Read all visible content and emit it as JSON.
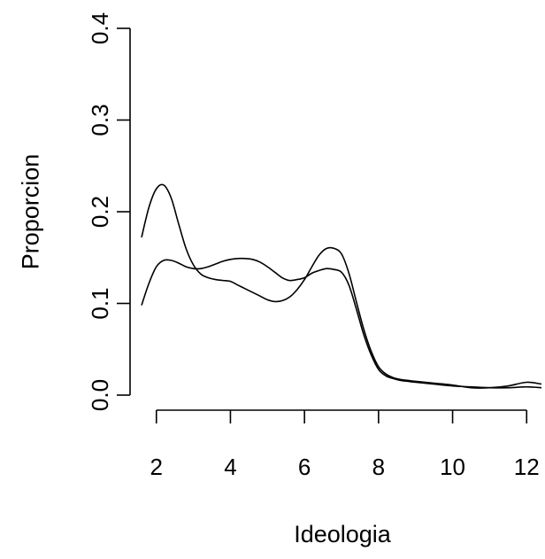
{
  "chart_data": {
    "type": "line",
    "title": "",
    "xlabel": "Ideologia",
    "ylabel": "Proporcion",
    "xlim": [
      1.6,
      12.4
    ],
    "ylim": [
      0.0,
      0.4
    ],
    "xticks": [
      2,
      4,
      6,
      8,
      10,
      12
    ],
    "xtick_labels": [
      "2",
      "4",
      "6",
      "8",
      "10",
      "12"
    ],
    "yticks": [
      0.0,
      0.1,
      0.2,
      0.3,
      0.4
    ],
    "ytick_labels": [
      "0.0",
      "0.1",
      "0.2",
      "0.3",
      "0.4"
    ],
    "grid": false,
    "legend": "none",
    "line_color": "#000000",
    "series": [
      {
        "x": [
          1.6,
          1.8,
          2.0,
          2.2,
          2.4,
          2.6,
          2.8,
          3.0,
          3.2,
          3.4,
          3.6,
          3.8,
          4.0,
          4.2,
          4.4,
          4.6,
          4.8,
          5.0,
          5.2,
          5.4,
          5.6,
          5.8,
          6.0,
          6.2,
          6.4,
          6.6,
          6.8,
          7.0,
          7.2,
          7.4,
          7.6,
          7.8,
          8.0,
          8.2,
          8.4,
          8.6,
          8.8,
          9.0,
          9.5,
          10.0,
          10.5,
          11.0,
          11.5,
          12.0,
          12.4
        ],
        "values": [
          0.172,
          0.205,
          0.225,
          0.229,
          0.215,
          0.187,
          0.16,
          0.142,
          0.132,
          0.128,
          0.126,
          0.125,
          0.124,
          0.12,
          0.116,
          0.112,
          0.108,
          0.104,
          0.102,
          0.103,
          0.107,
          0.115,
          0.126,
          0.14,
          0.153,
          0.16,
          0.16,
          0.154,
          0.133,
          0.102,
          0.072,
          0.048,
          0.031,
          0.023,
          0.019,
          0.017,
          0.016,
          0.015,
          0.013,
          0.011,
          0.008,
          0.008,
          0.01,
          0.014,
          0.012
        ]
      },
      {
        "x": [
          1.6,
          1.8,
          2.0,
          2.2,
          2.4,
          2.6,
          2.8,
          3.0,
          3.2,
          3.4,
          3.6,
          3.8,
          4.0,
          4.2,
          4.4,
          4.6,
          4.8,
          5.0,
          5.2,
          5.4,
          5.6,
          5.8,
          6.0,
          6.2,
          6.4,
          6.6,
          6.8,
          7.0,
          7.2,
          7.4,
          7.6,
          7.8,
          8.0,
          8.2,
          8.4,
          8.6,
          8.8,
          9.0,
          9.5,
          10.0,
          10.5,
          11.0,
          11.5,
          12.0,
          12.4
        ],
        "values": [
          0.098,
          0.122,
          0.14,
          0.147,
          0.147,
          0.144,
          0.14,
          0.138,
          0.138,
          0.14,
          0.143,
          0.146,
          0.148,
          0.149,
          0.149,
          0.148,
          0.145,
          0.14,
          0.134,
          0.128,
          0.125,
          0.126,
          0.128,
          0.133,
          0.136,
          0.138,
          0.137,
          0.134,
          0.12,
          0.094,
          0.066,
          0.044,
          0.028,
          0.021,
          0.018,
          0.016,
          0.015,
          0.014,
          0.012,
          0.01,
          0.009,
          0.008,
          0.008,
          0.009,
          0.008
        ]
      }
    ]
  }
}
